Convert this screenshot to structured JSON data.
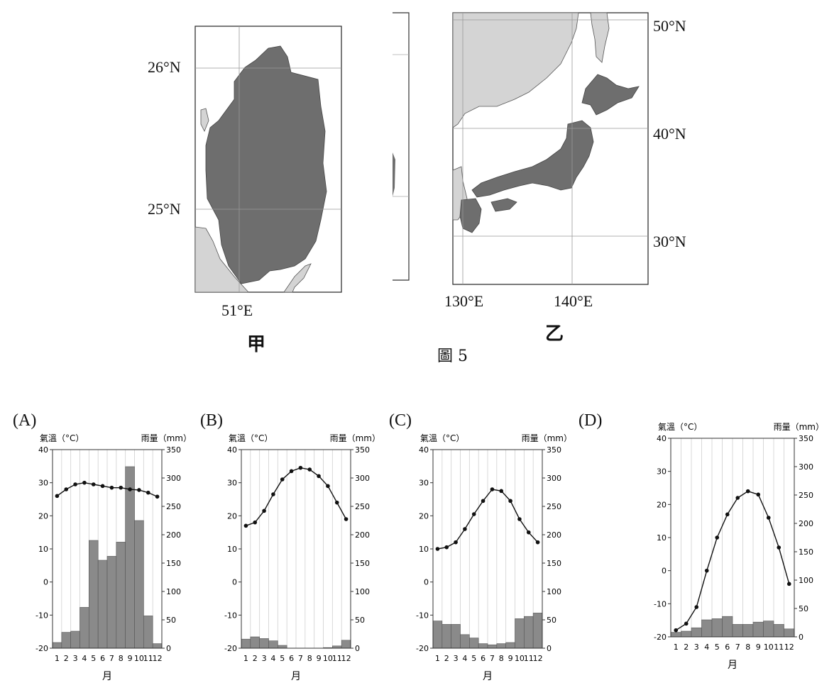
{
  "figure": {
    "caption": "圖 5",
    "map_jia": {
      "label": "甲",
      "lat_labels": [
        "26°N",
        "25°N"
      ],
      "lon_labels": [
        "51°E"
      ]
    },
    "map_yi": {
      "label": "乙",
      "lat_labels": [
        "50°N",
        "40°N",
        "30°N"
      ],
      "lon_labels": [
        "130°E",
        "140°E"
      ]
    },
    "colors": {
      "land_highlight": "#6e6e6e",
      "land_other": "#d4d4d4",
      "bar": "#8a8a8a"
    }
  },
  "chart_data": [
    {
      "panel": "(A)",
      "type": "bar+line",
      "ylabel_left": "氣溫（°C）",
      "ylabel_right": "雨量（mm）",
      "xlabel": "月",
      "categories": [
        "1",
        "2",
        "3",
        "4",
        "5",
        "6",
        "7",
        "8",
        "9",
        "10",
        "11",
        "12"
      ],
      "ylim_left": [
        -20,
        40
      ],
      "ylim_right": [
        0,
        350
      ],
      "left_ticks": [
        "40",
        "30",
        "20",
        "10",
        "0",
        "-10",
        "-20"
      ],
      "right_ticks": [
        "350",
        "300",
        "250",
        "200",
        "150",
        "100",
        "50",
        "0"
      ],
      "temperature": [
        26,
        28,
        29.5,
        30,
        29.5,
        29,
        28.5,
        28.5,
        28,
        27.8,
        27,
        25.8
      ],
      "rainfall": [
        10,
        28,
        30,
        72,
        190,
        155,
        162,
        187,
        320,
        225,
        57,
        8
      ]
    },
    {
      "panel": "(B)",
      "type": "bar+line",
      "ylabel_left": "氣溫（°C）",
      "ylabel_right": "雨量（mm）",
      "xlabel": "月",
      "categories": [
        "1",
        "2",
        "3",
        "4",
        "5",
        "6",
        "7",
        "8",
        "9",
        "10",
        "11",
        "12"
      ],
      "ylim_left": [
        -20,
        40
      ],
      "ylim_right": [
        0,
        350
      ],
      "left_ticks": [
        "40",
        "30",
        "20",
        "10",
        "0",
        "-10",
        "-20"
      ],
      "right_ticks": [
        "350",
        "300",
        "250",
        "200",
        "150",
        "100",
        "50",
        "0"
      ],
      "temperature": [
        17,
        18,
        21.5,
        26.5,
        31,
        33.5,
        34.5,
        34,
        32,
        29,
        24,
        19
      ],
      "rainfall": [
        16,
        20,
        17,
        13,
        5,
        0,
        0,
        0,
        0,
        1,
        4,
        14
      ]
    },
    {
      "panel": "(C)",
      "type": "bar+line",
      "ylabel_left": "氣溫（°C）",
      "ylabel_right": "雨量（mm）",
      "xlabel": "月",
      "categories": [
        "1",
        "2",
        "3",
        "4",
        "5",
        "6",
        "7",
        "8",
        "9",
        "10",
        "11",
        "12"
      ],
      "ylim_left": [
        -20,
        40
      ],
      "ylim_right": [
        0,
        350
      ],
      "left_ticks": [
        "40",
        "30",
        "20",
        "10",
        "0",
        "-10",
        "-20"
      ],
      "right_ticks": [
        "350",
        "300",
        "250",
        "200",
        "150",
        "100",
        "50",
        "0"
      ],
      "temperature": [
        10,
        10.5,
        12,
        16,
        20.5,
        24.5,
        28,
        27.5,
        24.5,
        19,
        15,
        12
      ],
      "rainfall": [
        48,
        42,
        42,
        24,
        18,
        8,
        6,
        8,
        10,
        52,
        56,
        62
      ]
    },
    {
      "panel": "(D)",
      "type": "bar+line",
      "ylabel_left": "氣溫（°C）",
      "ylabel_right": "雨量（mm）",
      "xlabel": "月",
      "categories": [
        "1",
        "2",
        "3",
        "4",
        "5",
        "6",
        "7",
        "8",
        "9",
        "10",
        "11",
        "12"
      ],
      "ylim_left": [
        -20,
        40
      ],
      "ylim_right": [
        0,
        350
      ],
      "left_ticks": [
        "40",
        "30",
        "20",
        "10",
        "0",
        "-10",
        "-20"
      ],
      "right_ticks": [
        "350",
        "300",
        "250",
        "200",
        "150",
        "100",
        "50",
        "0"
      ],
      "temperature": [
        -18,
        -16,
        -11,
        0,
        10,
        17,
        22,
        24,
        23,
        16,
        7,
        -4
      ],
      "rainfall": [
        8,
        10,
        16,
        30,
        32,
        36,
        22,
        22,
        26,
        28,
        22,
        14
      ]
    }
  ]
}
